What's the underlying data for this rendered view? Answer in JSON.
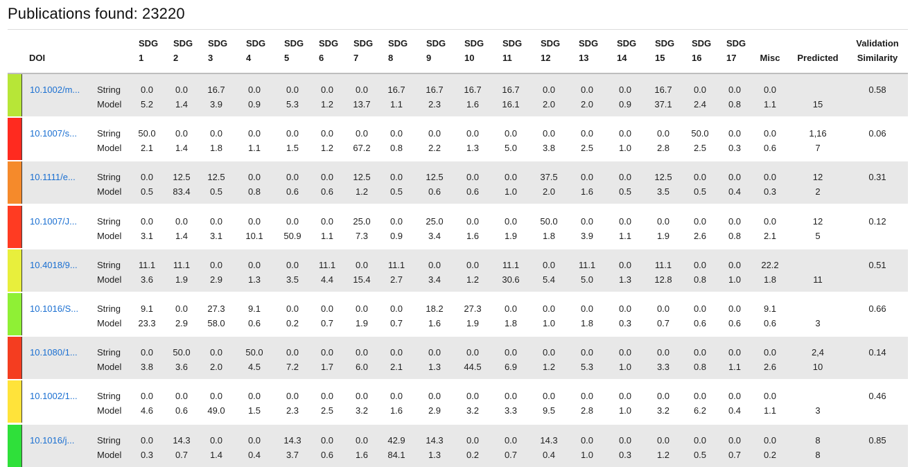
{
  "title": "Publications found: 23220",
  "headers": [
    "DOI",
    "SDG\n1",
    "SDG\n2",
    "SDG\n3",
    "SDG\n4",
    "SDG\n5",
    "SDG\n6",
    "SDG\n7",
    "SDG\n8",
    "SDG\n9",
    "SDG\n10",
    "SDG\n11",
    "SDG\n12",
    "SDG\n13",
    "SDG\n14",
    "SDG\n15",
    "SDG\n16",
    "SDG\n17",
    "Misc",
    "Predicted",
    "Validation\nSimilarity"
  ],
  "row_labels": {
    "string": "String",
    "model": "Model"
  },
  "rows": [
    {
      "doi": "10.1002/m...",
      "color": "#b7e637",
      "string": [
        "0.0",
        "0.0",
        "16.7",
        "0.0",
        "0.0",
        "0.0",
        "0.0",
        "16.7",
        "16.7",
        "16.7",
        "16.7",
        "0.0",
        "0.0",
        "0.0",
        "16.7",
        "0.0",
        "0.0",
        "0.0"
      ],
      "model": [
        "5.2",
        "1.4",
        "3.9",
        "0.9",
        "5.3",
        "1.2",
        "13.7",
        "1.1",
        "2.3",
        "1.6",
        "16.1",
        "2.0",
        "2.0",
        "0.9",
        "37.1",
        "2.4",
        "0.8",
        "1.1"
      ],
      "pred1": "",
      "pred2": "15",
      "similarity": "0.58"
    },
    {
      "doi": "10.1007/s...",
      "color": "#ff2a1f",
      "string": [
        "50.0",
        "0.0",
        "0.0",
        "0.0",
        "0.0",
        "0.0",
        "0.0",
        "0.0",
        "0.0",
        "0.0",
        "0.0",
        "0.0",
        "0.0",
        "0.0",
        "0.0",
        "50.0",
        "0.0",
        "0.0"
      ],
      "model": [
        "2.1",
        "1.4",
        "1.8",
        "1.1",
        "1.5",
        "1.2",
        "67.2",
        "0.8",
        "2.2",
        "1.3",
        "5.0",
        "3.8",
        "2.5",
        "1.0",
        "2.8",
        "2.5",
        "0.3",
        "0.6"
      ],
      "pred1": "1,16",
      "pred2": "7",
      "similarity": "0.06"
    },
    {
      "doi": "10.1111/e...",
      "color": "#f58a2b",
      "string": [
        "0.0",
        "12.5",
        "12.5",
        "0.0",
        "0.0",
        "0.0",
        "12.5",
        "0.0",
        "12.5",
        "0.0",
        "0.0",
        "37.5",
        "0.0",
        "0.0",
        "12.5",
        "0.0",
        "0.0",
        "0.0"
      ],
      "model": [
        "0.5",
        "83.4",
        "0.5",
        "0.8",
        "0.6",
        "0.6",
        "1.2",
        "0.5",
        "0.6",
        "0.6",
        "1.0",
        "2.0",
        "1.6",
        "0.5",
        "3.5",
        "0.5",
        "0.4",
        "0.3"
      ],
      "pred1": "12",
      "pred2": "2",
      "similarity": "0.31"
    },
    {
      "doi": "10.1007/J...",
      "color": "#ff3b22",
      "string": [
        "0.0",
        "0.0",
        "0.0",
        "0.0",
        "0.0",
        "0.0",
        "25.0",
        "0.0",
        "25.0",
        "0.0",
        "0.0",
        "50.0",
        "0.0",
        "0.0",
        "0.0",
        "0.0",
        "0.0",
        "0.0"
      ],
      "model": [
        "3.1",
        "1.4",
        "3.1",
        "10.1",
        "50.9",
        "1.1",
        "7.3",
        "0.9",
        "3.4",
        "1.6",
        "1.9",
        "1.8",
        "3.9",
        "1.1",
        "1.9",
        "2.6",
        "0.8",
        "2.1"
      ],
      "pred1": "12",
      "pred2": "5",
      "similarity": "0.12"
    },
    {
      "doi": "10.4018/9...",
      "color": "#e8ef3c",
      "string": [
        "11.1",
        "11.1",
        "0.0",
        "0.0",
        "0.0",
        "11.1",
        "0.0",
        "11.1",
        "0.0",
        "0.0",
        "11.1",
        "0.0",
        "11.1",
        "0.0",
        "11.1",
        "0.0",
        "0.0",
        "22.2"
      ],
      "model": [
        "3.6",
        "1.9",
        "2.9",
        "1.3",
        "3.5",
        "4.4",
        "15.4",
        "2.7",
        "3.4",
        "1.2",
        "30.6",
        "5.4",
        "5.0",
        "1.3",
        "12.8",
        "0.8",
        "1.0",
        "1.8"
      ],
      "pred1": "",
      "pred2": "11",
      "similarity": "0.51"
    },
    {
      "doi": "10.1016/S...",
      "color": "#8ff035",
      "string": [
        "9.1",
        "0.0",
        "27.3",
        "9.1",
        "0.0",
        "0.0",
        "0.0",
        "0.0",
        "18.2",
        "27.3",
        "0.0",
        "0.0",
        "0.0",
        "0.0",
        "0.0",
        "0.0",
        "0.0",
        "9.1"
      ],
      "model": [
        "23.3",
        "2.9",
        "58.0",
        "0.6",
        "0.2",
        "0.7",
        "1.9",
        "0.7",
        "1.6",
        "1.9",
        "1.8",
        "1.0",
        "1.8",
        "0.3",
        "0.7",
        "0.6",
        "0.6",
        "0.6"
      ],
      "pred1": "",
      "pred2": "3",
      "similarity": "0.66"
    },
    {
      "doi": "10.1080/1...",
      "color": "#f43d20",
      "string": [
        "0.0",
        "50.0",
        "0.0",
        "50.0",
        "0.0",
        "0.0",
        "0.0",
        "0.0",
        "0.0",
        "0.0",
        "0.0",
        "0.0",
        "0.0",
        "0.0",
        "0.0",
        "0.0",
        "0.0",
        "0.0"
      ],
      "model": [
        "3.8",
        "3.6",
        "2.0",
        "4.5",
        "7.2",
        "1.7",
        "6.0",
        "2.1",
        "1.3",
        "44.5",
        "6.9",
        "1.2",
        "5.3",
        "1.0",
        "3.3",
        "0.8",
        "1.1",
        "2.6"
      ],
      "pred1": "2,4",
      "pred2": "10",
      "similarity": "0.14"
    },
    {
      "doi": "10.1002/1...",
      "color": "#ffe33a",
      "string": [
        "0.0",
        "0.0",
        "0.0",
        "0.0",
        "0.0",
        "0.0",
        "0.0",
        "0.0",
        "0.0",
        "0.0",
        "0.0",
        "0.0",
        "0.0",
        "0.0",
        "0.0",
        "0.0",
        "0.0",
        "0.0"
      ],
      "model": [
        "4.6",
        "0.6",
        "49.0",
        "1.5",
        "2.3",
        "2.5",
        "3.2",
        "1.6",
        "2.9",
        "3.2",
        "3.3",
        "9.5",
        "2.8",
        "1.0",
        "3.2",
        "6.2",
        "0.4",
        "1.1"
      ],
      "pred1": "",
      "pred2": "3",
      "similarity": "0.46"
    },
    {
      "doi": "10.1016/j...",
      "color": "#2fe03a",
      "string": [
        "0.0",
        "14.3",
        "0.0",
        "0.0",
        "14.3",
        "0.0",
        "0.0",
        "42.9",
        "14.3",
        "0.0",
        "0.0",
        "14.3",
        "0.0",
        "0.0",
        "0.0",
        "0.0",
        "0.0",
        "0.0"
      ],
      "model": [
        "0.3",
        "0.7",
        "1.4",
        "0.4",
        "3.7",
        "0.6",
        "1.6",
        "84.1",
        "1.3",
        "0.2",
        "0.7",
        "0.4",
        "1.0",
        "0.3",
        "1.2",
        "0.5",
        "0.7",
        "0.2"
      ],
      "pred1": "8",
      "pred2": "8",
      "similarity": "0.85"
    }
  ]
}
